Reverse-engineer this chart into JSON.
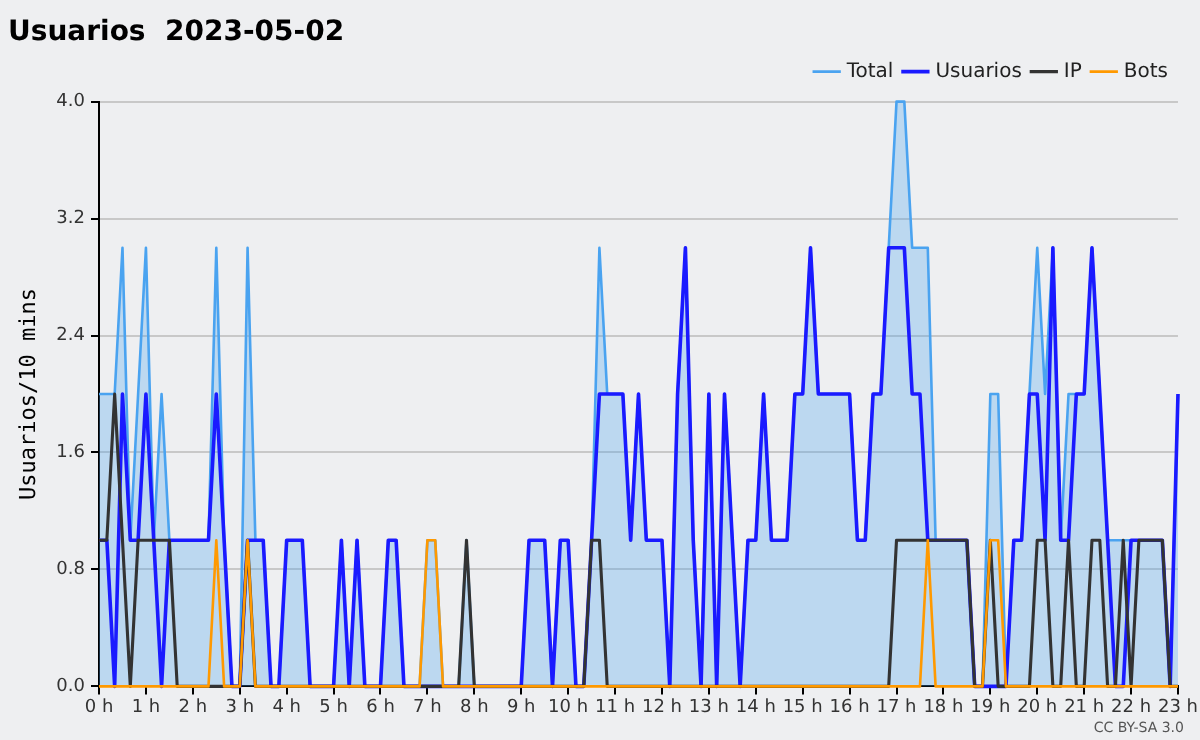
{
  "chart_data": {
    "type": "line",
    "title": "Usuarios  2023-05-02",
    "ylabel": "Usuarios/10 mins",
    "annotations": [
      "CC BY-SA 3.0"
    ],
    "x": [
      "2023-05-02T00:00",
      "2023-05-02T00:10",
      "2023-05-02T00:20",
      "2023-05-02T00:30",
      "2023-05-02T00:40",
      "2023-05-02T00:50",
      "2023-05-02T01:00",
      "2023-05-02T01:10",
      "2023-05-02T01:20",
      "2023-05-02T01:30",
      "2023-05-02T01:40",
      "2023-05-02T01:50",
      "2023-05-02T02:00",
      "2023-05-02T02:10",
      "2023-05-02T02:20",
      "2023-05-02T02:30",
      "2023-05-02T02:40",
      "2023-05-02T02:50",
      "2023-05-02T03:00",
      "2023-05-02T03:10",
      "2023-05-02T03:20",
      "2023-05-02T03:30",
      "2023-05-02T03:40",
      "2023-05-02T03:50",
      "2023-05-02T04:00",
      "2023-05-02T04:10",
      "2023-05-02T04:20",
      "2023-05-02T04:30",
      "2023-05-02T04:40",
      "2023-05-02T04:50",
      "2023-05-02T05:00",
      "2023-05-02T05:10",
      "2023-05-02T05:20",
      "2023-05-02T05:30",
      "2023-05-02T05:40",
      "2023-05-02T05:50",
      "2023-05-02T06:00",
      "2023-05-02T06:10",
      "2023-05-02T06:20",
      "2023-05-02T06:30",
      "2023-05-02T06:40",
      "2023-05-02T06:50",
      "2023-05-02T07:00",
      "2023-05-02T07:10",
      "2023-05-02T07:20",
      "2023-05-02T07:30",
      "2023-05-02T07:40",
      "2023-05-02T07:50",
      "2023-05-02T08:00",
      "2023-05-02T08:10",
      "2023-05-02T08:20",
      "2023-05-02T08:30",
      "2023-05-02T08:40",
      "2023-05-02T08:50",
      "2023-05-02T09:00",
      "2023-05-02T09:10",
      "2023-05-02T09:20",
      "2023-05-02T09:30",
      "2023-05-02T09:40",
      "2023-05-02T09:50",
      "2023-05-02T10:00",
      "2023-05-02T10:10",
      "2023-05-02T10:20",
      "2023-05-02T10:30",
      "2023-05-02T10:40",
      "2023-05-02T10:50",
      "2023-05-02T11:00",
      "2023-05-02T11:10",
      "2023-05-02T11:20",
      "2023-05-02T11:30",
      "2023-05-02T11:40",
      "2023-05-02T11:50",
      "2023-05-02T12:00",
      "2023-05-02T12:10",
      "2023-05-02T12:20",
      "2023-05-02T12:30",
      "2023-05-02T12:40",
      "2023-05-02T12:50",
      "2023-05-02T13:00",
      "2023-05-02T13:10",
      "2023-05-02T13:20",
      "2023-05-02T13:30",
      "2023-05-02T13:40",
      "2023-05-02T13:50",
      "2023-05-02T14:00",
      "2023-05-02T14:10",
      "2023-05-02T14:20",
      "2023-05-02T14:30",
      "2023-05-02T14:40",
      "2023-05-02T14:50",
      "2023-05-02T15:00",
      "2023-05-02T15:10",
      "2023-05-02T15:20",
      "2023-05-02T15:30",
      "2023-05-02T15:40",
      "2023-05-02T15:50",
      "2023-05-02T16:00",
      "2023-05-02T16:10",
      "2023-05-02T16:20",
      "2023-05-02T16:30",
      "2023-05-02T16:40",
      "2023-05-02T16:50",
      "2023-05-02T17:00",
      "2023-05-02T17:10",
      "2023-05-02T17:20",
      "2023-05-02T17:30",
      "2023-05-02T17:40",
      "2023-05-02T17:50",
      "2023-05-02T18:00",
      "2023-05-02T18:10",
      "2023-05-02T18:20",
      "2023-05-02T18:30",
      "2023-05-02T18:40",
      "2023-05-02T18:50",
      "2023-05-02T19:00",
      "2023-05-02T19:10",
      "2023-05-02T19:20",
      "2023-05-02T19:30",
      "2023-05-02T19:40",
      "2023-05-02T19:50",
      "2023-05-02T20:00",
      "2023-05-02T20:10",
      "2023-05-02T20:20",
      "2023-05-02T20:30",
      "2023-05-02T20:40",
      "2023-05-02T20:50",
      "2023-05-02T21:00",
      "2023-05-02T21:10",
      "2023-05-02T21:20",
      "2023-05-02T21:30",
      "2023-05-02T21:40",
      "2023-05-02T21:50",
      "2023-05-02T22:00",
      "2023-05-02T22:10",
      "2023-05-02T22:20",
      "2023-05-02T22:30",
      "2023-05-02T22:40",
      "2023-05-02T22:50",
      "2023-05-02T23:00"
    ],
    "xlim": [
      "2023-05-02T00:00",
      "2023-05-02T23:00"
    ],
    "xticks": [
      {
        "value": "2023-05-02T00:00",
        "label": "0 h"
      },
      {
        "value": "2023-05-02T01:00",
        "label": "1 h"
      },
      {
        "value": "2023-05-02T02:00",
        "label": "2 h"
      },
      {
        "value": "2023-05-02T03:00",
        "label": "3 h"
      },
      {
        "value": "2023-05-02T04:00",
        "label": "4 h"
      },
      {
        "value": "2023-05-02T05:00",
        "label": "5 h"
      },
      {
        "value": "2023-05-02T06:00",
        "label": "6 h"
      },
      {
        "value": "2023-05-02T07:00",
        "label": "7 h"
      },
      {
        "value": "2023-05-02T08:00",
        "label": "8 h"
      },
      {
        "value": "2023-05-02T09:00",
        "label": "9 h"
      },
      {
        "value": "2023-05-02T10:00",
        "label": "10 h"
      },
      {
        "value": "2023-05-02T11:00",
        "label": "11 h"
      },
      {
        "value": "2023-05-02T12:00",
        "label": "12 h"
      },
      {
        "value": "2023-05-02T13:00",
        "label": "13 h"
      },
      {
        "value": "2023-05-02T14:00",
        "label": "14 h"
      },
      {
        "value": "2023-05-02T15:00",
        "label": "15 h"
      },
      {
        "value": "2023-05-02T16:00",
        "label": "16 h"
      },
      {
        "value": "2023-05-02T17:00",
        "label": "17 h"
      },
      {
        "value": "2023-05-02T18:00",
        "label": "18 h"
      },
      {
        "value": "2023-05-02T19:00",
        "label": "19 h"
      },
      {
        "value": "2023-05-02T20:00",
        "label": "20 h"
      },
      {
        "value": "2023-05-02T21:00",
        "label": "21 h"
      },
      {
        "value": "2023-05-02T22:00",
        "label": "22 h"
      },
      {
        "value": "2023-05-02T23:00",
        "label": "23 h"
      }
    ],
    "ylim": [
      0,
      4
    ],
    "yticks": [
      {
        "value": 0,
        "label": "0.0"
      },
      {
        "value": 0.8,
        "label": "0.8"
      },
      {
        "value": 1.6,
        "label": "1.6"
      },
      {
        "value": 2.4,
        "label": "2.4"
      },
      {
        "value": 3.2,
        "label": "3.2"
      },
      {
        "value": 4,
        "label": "4.0"
      }
    ],
    "grid": "y",
    "legend": "top right",
    "marker": "none",
    "line_style": "solid",
    "series": [
      {
        "name": "Total",
        "type": "area",
        "color": "#4aa3f0",
        "values": [
          2,
          2,
          2,
          3,
          1,
          2,
          3,
          1,
          2,
          1,
          1,
          1,
          1,
          1,
          1,
          3,
          1,
          0,
          0,
          3,
          1,
          1,
          0,
          0,
          1,
          1,
          1,
          0,
          0,
          0,
          0,
          1,
          0,
          1,
          0,
          0,
          0,
          1,
          1,
          0,
          0,
          0,
          1,
          1,
          0,
          0,
          0,
          1,
          0,
          0,
          0,
          0,
          0,
          0,
          0,
          1,
          1,
          1,
          0,
          1,
          1,
          0,
          0,
          1,
          3,
          2,
          2,
          2,
          1,
          2,
          1,
          1,
          1,
          0,
          2,
          3,
          1,
          0,
          2,
          0,
          2,
          1,
          0,
          1,
          1,
          2,
          1,
          1,
          1,
          2,
          2,
          3,
          2,
          2,
          2,
          2,
          2,
          1,
          1,
          2,
          2,
          3,
          4,
          4,
          3,
          3,
          3,
          1,
          1,
          1,
          1,
          1,
          0,
          0,
          2,
          2,
          0,
          1,
          1,
          2,
          3,
          2,
          3,
          1,
          2,
          2,
          2,
          3,
          2,
          1,
          1,
          1,
          1,
          1,
          1,
          1,
          1,
          0,
          2
        ]
      },
      {
        "name": "Usuarios",
        "type": "line",
        "color": "#1a1aff",
        "values": [
          1,
          1,
          0,
          2,
          1,
          1,
          2,
          1,
          0,
          1,
          1,
          1,
          1,
          1,
          1,
          2,
          1,
          0,
          0,
          1,
          1,
          1,
          0,
          0,
          1,
          1,
          1,
          0,
          0,
          0,
          0,
          1,
          0,
          1,
          0,
          0,
          0,
          1,
          1,
          0,
          0,
          0,
          0,
          0,
          0,
          0,
          0,
          0,
          0,
          0,
          0,
          0,
          0,
          0,
          0,
          1,
          1,
          1,
          0,
          1,
          1,
          0,
          0,
          1,
          2,
          2,
          2,
          2,
          1,
          2,
          1,
          1,
          1,
          0,
          2,
          3,
          1,
          0,
          2,
          0,
          2,
          1,
          0,
          1,
          1,
          2,
          1,
          1,
          1,
          2,
          2,
          3,
          2,
          2,
          2,
          2,
          2,
          1,
          1,
          2,
          2,
          3,
          3,
          3,
          2,
          2,
          1,
          1,
          1,
          1,
          1,
          1,
          0,
          0,
          0,
          0,
          0,
          1,
          1,
          2,
          2,
          1,
          3,
          1,
          1,
          2,
          2,
          3,
          2,
          1,
          0,
          0,
          1,
          1,
          1,
          1,
          1,
          0,
          2
        ]
      },
      {
        "name": "IP",
        "type": "line",
        "color": "#333333",
        "values": [
          1,
          1,
          2,
          1,
          0,
          1,
          1,
          1,
          1,
          1,
          0,
          0,
          0,
          0,
          0,
          0,
          0,
          0,
          0,
          1,
          0,
          0,
          0,
          0,
          0,
          0,
          0,
          0,
          0,
          0,
          0,
          0,
          0,
          0,
          0,
          0,
          0,
          0,
          0,
          0,
          0,
          0,
          0,
          0,
          0,
          0,
          0,
          1,
          0,
          0,
          0,
          0,
          0,
          0,
          0,
          0,
          0,
          0,
          0,
          0,
          0,
          0,
          0,
          1,
          1,
          0,
          0,
          0,
          0,
          0,
          0,
          0,
          0,
          0,
          0,
          0,
          0,
          0,
          0,
          0,
          0,
          0,
          0,
          0,
          0,
          0,
          0,
          0,
          0,
          0,
          0,
          0,
          0,
          0,
          0,
          0,
          0,
          0,
          0,
          0,
          0,
          0,
          1,
          1,
          1,
          1,
          1,
          1,
          1,
          1,
          1,
          1,
          0,
          0,
          1,
          0,
          0,
          0,
          0,
          0,
          1,
          1,
          0,
          0,
          1,
          0,
          0,
          1,
          1,
          0,
          0,
          1,
          0,
          1,
          1,
          1,
          1,
          0,
          0
        ]
      },
      {
        "name": "Bots",
        "type": "line",
        "color": "#ff9900",
        "values": [
          0,
          0,
          0,
          0,
          0,
          0,
          0,
          0,
          0,
          0,
          0,
          0,
          0,
          0,
          0,
          1,
          0,
          0,
          0,
          1,
          0,
          0,
          0,
          0,
          0,
          0,
          0,
          0,
          0,
          0,
          0,
          0,
          0,
          0,
          0,
          0,
          0,
          0,
          0,
          0,
          0,
          0,
          1,
          1,
          0,
          0,
          0,
          0,
          0,
          0,
          0,
          0,
          0,
          0,
          0,
          0,
          0,
          0,
          0,
          0,
          0,
          0,
          0,
          0,
          0,
          0,
          0,
          0,
          0,
          0,
          0,
          0,
          0,
          0,
          0,
          0,
          0,
          0,
          0,
          0,
          0,
          0,
          0,
          0,
          0,
          0,
          0,
          0,
          0,
          0,
          0,
          0,
          0,
          0,
          0,
          0,
          0,
          0,
          0,
          0,
          0,
          0,
          0,
          0,
          0,
          0,
          1,
          0,
          0,
          0,
          0,
          0,
          0,
          0,
          1,
          1,
          0,
          0,
          0,
          0,
          0,
          0,
          0,
          0,
          0,
          0,
          0,
          0,
          0,
          0,
          0,
          0,
          0,
          0,
          0,
          0,
          0,
          0,
          0
        ]
      }
    ]
  }
}
